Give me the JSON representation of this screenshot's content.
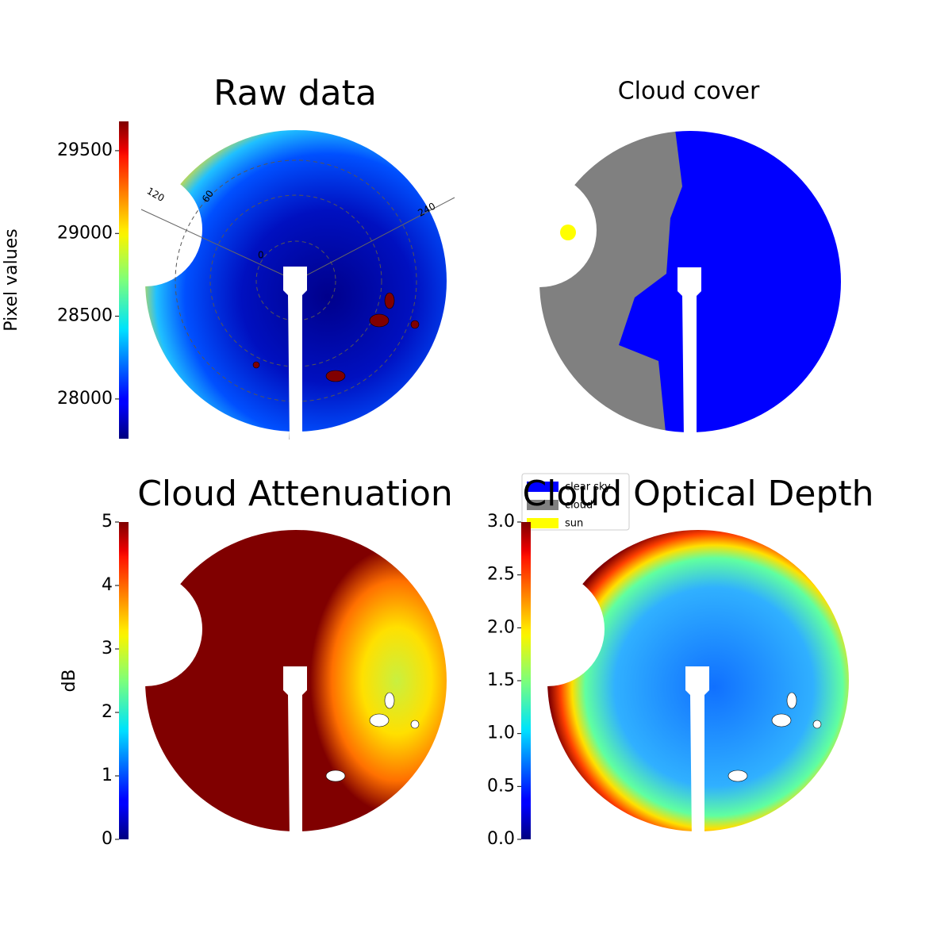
{
  "chart_data": [
    {
      "type": "image",
      "title": "Raw data",
      "colorbar": {
        "label": "Pixel values",
        "colormap": "jet",
        "ylim": [
          27760,
          29677
        ],
        "yticks": [
          28000,
          28500,
          29000,
          29500
        ]
      },
      "polar_labels": [
        "120",
        "60",
        "240",
        "0"
      ]
    },
    {
      "type": "image",
      "title": "Cloud cover",
      "legend": {
        "position": "lower right",
        "series": [
          {
            "name": "clear sky",
            "color": "#0000ff"
          },
          {
            "name": "cloud",
            "color": "#808080"
          },
          {
            "name": "sun",
            "color": "#ffff00"
          }
        ]
      }
    },
    {
      "type": "image",
      "title": "Cloud Attenuation",
      "colorbar": {
        "label": "dB",
        "colormap": "jet",
        "ylim": [
          0,
          5
        ],
        "yticks": [
          0,
          1,
          2,
          3,
          4,
          5
        ]
      }
    },
    {
      "type": "image",
      "title": "Cloud Optical Depth",
      "colorbar": {
        "colormap": "jet",
        "ylim": [
          0,
          3
        ],
        "yticks": [
          {
            "value": 0,
            "label": "0.0"
          },
          {
            "value": 0.5,
            "label": "0.5"
          },
          {
            "value": 1,
            "label": "1.0"
          },
          {
            "value": 1.5,
            "label": "1.5"
          },
          {
            "value": 2,
            "label": "2.0"
          },
          {
            "value": 2.5,
            "label": "2.5"
          },
          {
            "value": 3,
            "label": "3.0"
          }
        ]
      }
    }
  ]
}
